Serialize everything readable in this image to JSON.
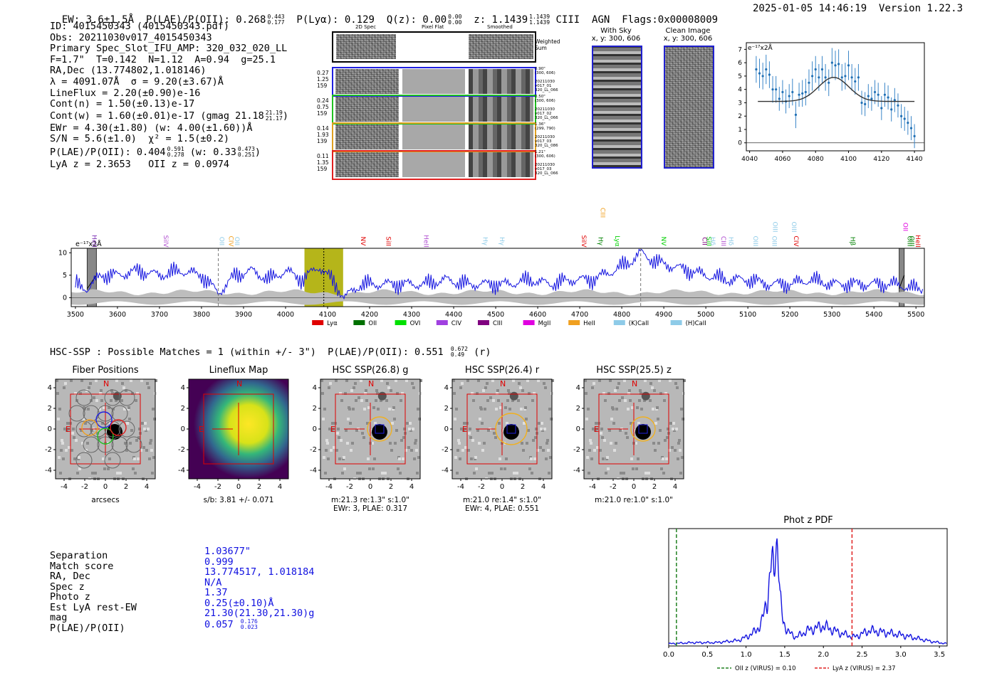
{
  "header": {
    "ew": "EW: 3.6±1.5Å",
    "plae_label": "P(LAE)/P(OII): 0.268",
    "plae_hi": "0.443",
    "plae_lo": "0.177",
    "plya": "P(Lyα): 0.129",
    "qz_label": "Q(z): 0.00",
    "qz_hi": "0.00",
    "qz_lo": "0.00",
    "z_label": "z: 1.1439",
    "z_hi": "1.1439",
    "z_lo": "1.1439",
    "line": "CIII",
    "agn": "AGN",
    "flags": "Flags:0x00008009",
    "datetime": "2025-01-05 14:46:19",
    "version": "Version 1.22.3"
  },
  "info": {
    "id": "ID: 4015450343 (4015450343.pdf)",
    "obs": "Obs: 20211030v017_4015450343",
    "primary": "Primary Spec_Slot_IFU_AMP: 320_032_020_LL",
    "params": "F=1.7\"  T=0.142  N=1.12  A=0.94  g=25.1",
    "radec": "RA,Dec (13.774802,1.018146)",
    "lambda": "λ = 4091.07Å  σ = 9.20(±3.67)Å",
    "lineflux": "LineFlux = 2.20(±0.90)e-16",
    "contn": "Cont(n) = 1.50(±0.13)e-17",
    "contw": "Cont(w) = 1.60(±0.01)e-17 (gmag 21.18",
    "contw_hi": "21.19",
    "contw_lo": "21.17",
    "ewr": "EWr = 4.30(±1.80) (w: 4.00(±1.60))Å",
    "sn": "S/N = 5.6(±1.0)  χ² = 1.5(±0.2)",
    "plae": "P(LAE)/P(OII): 0.404",
    "plae_hi": "0.591",
    "plae_lo": "0.278",
    "plae_w": "(w: 0.33",
    "plae_w_hi": "0.473",
    "plae_w_lo": "0.251",
    "lya_z": "LyA z = 2.3653   OII z = 0.0974"
  },
  "cutouts": {
    "col_headers": [
      "2D Spec",
      "Pixel Flat",
      "Smoothed"
    ],
    "weighted": "Weighted\nSum",
    "rows": [
      {
        "left": "0.27\n1.25\n159",
        "right": "0.90\"\n(300, 606)\n\n20211030\nv017_01\n320_LL_066",
        "color": "#2020e0"
      },
      {
        "left": "0.24\n0.75\n159",
        "right": "0.50\"\n(300, 606)\n\n20211030\nv017_02\n320_LL_066",
        "color": "#20c020"
      },
      {
        "left": "0.14\n1.93\n139",
        "right": "1.36\"\n(299, 790)\n\n20211030\nv017_03\n320_LL_086",
        "color": "#e0a020"
      },
      {
        "left": "0.11\n1.35\n159",
        "right": "1.21\"\n(300, 606)\n\n20211030\nv017_03\n320_LL_066",
        "color": "#e02020"
      }
    ],
    "with_sky": "With Sky",
    "with_sky_xy": "x, y: 300, 606",
    "clean": "Clean Image",
    "clean_xy": "x, y: 300, 606"
  },
  "zoom_chart": {
    "type": "scatter",
    "ylabel": "e⁻¹⁷x2Å",
    "xlim": [
      4038,
      4146
    ],
    "ylim": [
      -0.6,
      7.5
    ],
    "xticks": [
      4040,
      4060,
      4080,
      4100,
      4120,
      4140
    ],
    "yticks": [
      0,
      1,
      2,
      3,
      4,
      5,
      6,
      7
    ],
    "x": [
      4044,
      4046,
      4048,
      4050,
      4052,
      4054,
      4056,
      4058,
      4060,
      4062,
      4064,
      4066,
      4068,
      4070,
      4072,
      4074,
      4076,
      4078,
      4080,
      4082,
      4084,
      4086,
      4088,
      4090,
      4092,
      4094,
      4096,
      4098,
      4100,
      4102,
      4104,
      4106,
      4108,
      4110,
      4112,
      4114,
      4116,
      4118,
      4120,
      4122,
      4124,
      4126,
      4128,
      4130,
      4132,
      4134,
      4136,
      4138,
      4140
    ],
    "y": [
      5.5,
      5.2,
      5.0,
      5.5,
      5.1,
      4.0,
      4.0,
      3.3,
      3.8,
      3.1,
      3.5,
      3.8,
      2.1,
      3.6,
      3.7,
      3.8,
      4.5,
      5.0,
      5.5,
      4.9,
      5.5,
      4.9,
      4.5,
      6.0,
      5.8,
      5.9,
      4.9,
      5.0,
      5.8,
      4.9,
      4.6,
      4.9,
      3.0,
      2.9,
      3.5,
      3.3,
      3.8,
      3.6,
      2.6,
      3.6,
      3.4,
      2.5,
      3.2,
      2.8,
      2.0,
      1.8,
      1.5,
      1.1,
      0.5
    ],
    "err": [
      1.0,
      1.1,
      1.0,
      1.1,
      1.0,
      1.0,
      1.0,
      0.9,
      0.9,
      0.9,
      0.9,
      1.0,
      1.0,
      0.9,
      1.0,
      1.0,
      1.0,
      1.1,
      1.0,
      1.0,
      1.0,
      1.0,
      1.0,
      1.1,
      1.1,
      1.1,
      1.0,
      1.0,
      1.1,
      1.0,
      1.0,
      1.0,
      0.9,
      0.9,
      0.9,
      0.9,
      0.9,
      0.9,
      0.9,
      0.9,
      0.9,
      0.9,
      0.9,
      0.9,
      0.9,
      0.9,
      0.9,
      0.9,
      0.9
    ],
    "fit_continuum": 3.1,
    "fit_peak": 4.9,
    "fit_center": 4091,
    "fit_sigma": 9.2
  },
  "spectrum": {
    "type": "line",
    "ylabel": "e⁻¹⁷x2Å",
    "xlim": [
      3490,
      5520
    ],
    "ylim": [
      -2,
      11
    ],
    "xticks": [
      3500,
      3600,
      3700,
      3800,
      3900,
      4000,
      4100,
      4200,
      4300,
      4400,
      4500,
      4600,
      4700,
      4800,
      4900,
      5000,
      5100,
      5200,
      5300,
      5400,
      5500
    ],
    "yticks": [
      0,
      5,
      10
    ],
    "line_wavelength": 4091,
    "highlight": [
      4045,
      4137
    ],
    "masked": [
      [
        3528,
        3550
      ],
      [
        5460,
        5472
      ]
    ],
    "dashed_lines": [
      3840,
      4845
    ],
    "series_profile": [
      [
        3500,
        3
      ],
      [
        3530,
        2
      ],
      [
        3560,
        5
      ],
      [
        3600,
        5
      ],
      [
        3650,
        6
      ],
      [
        3700,
        5
      ],
      [
        3750,
        6
      ],
      [
        3800,
        5
      ],
      [
        3840,
        1
      ],
      [
        3880,
        5
      ],
      [
        3920,
        6
      ],
      [
        3960,
        4
      ],
      [
        4000,
        6
      ],
      [
        4040,
        4
      ],
      [
        4080,
        7
      ],
      [
        4110,
        4
      ],
      [
        4140,
        0
      ],
      [
        4180,
        3
      ],
      [
        4230,
        3
      ],
      [
        4280,
        3
      ],
      [
        4330,
        3
      ],
      [
        4380,
        4
      ],
      [
        4430,
        3
      ],
      [
        4480,
        3
      ],
      [
        4530,
        3
      ],
      [
        4580,
        4
      ],
      [
        4630,
        3
      ],
      [
        4680,
        4
      ],
      [
        4730,
        4
      ],
      [
        4780,
        6
      ],
      [
        4820,
        8
      ],
      [
        4845,
        10
      ],
      [
        4880,
        8
      ],
      [
        4920,
        7
      ],
      [
        4960,
        6
      ],
      [
        5000,
        5
      ],
      [
        5050,
        4
      ],
      [
        5100,
        4
      ],
      [
        5150,
        3
      ],
      [
        5200,
        3
      ],
      [
        5250,
        4
      ],
      [
        5300,
        3
      ],
      [
        5350,
        3
      ],
      [
        5400,
        3
      ],
      [
        5450,
        3
      ],
      [
        5500,
        2
      ],
      [
        5520,
        2
      ]
    ],
    "lines": [
      {
        "name": "HeII",
        "w": 3540,
        "color": "#7b2fb3",
        "row": 2
      },
      {
        "name": "SiIV",
        "w": 3710,
        "color": "#b04fd0",
        "row": 2
      },
      {
        "name": "OII",
        "w": 3843,
        "color": "#8ecbe8",
        "row": 2
      },
      {
        "name": "CIV",
        "w": 3865,
        "color": "#f0a020",
        "row": 2
      },
      {
        "name": "OII",
        "w": 3880,
        "color": "#8ecbe8",
        "row": 2
      },
      {
        "name": "NV",
        "w": 4180,
        "color": "#e00000",
        "row": 2
      },
      {
        "name": "SiII",
        "w": 4240,
        "color": "#e00000",
        "row": 2
      },
      {
        "name": "HeII",
        "w": 4330,
        "color": "#b04fd0",
        "row": 2
      },
      {
        "name": "Hγ",
        "w": 4470,
        "color": "#8ecbe8",
        "row": 2
      },
      {
        "name": "Hγ",
        "w": 4510,
        "color": "#8ecbe8",
        "row": 2
      },
      {
        "name": "SiIV",
        "w": 4705,
        "color": "#e00000",
        "row": 2
      },
      {
        "name": "Hγ",
        "w": 4745,
        "color": "#008000",
        "row": 2
      },
      {
        "name": "CIII",
        "w": 4750,
        "color": "#f0a020",
        "row": 0
      },
      {
        "name": "Lyα",
        "w": 4785,
        "color": "#00d000",
        "row": 2
      },
      {
        "name": "NV",
        "w": 4895,
        "color": "#00d000",
        "row": 2
      },
      {
        "name": "CII",
        "w": 4992,
        "color": "#800080",
        "row": 2
      },
      {
        "name": "SiII",
        "w": 5002,
        "color": "#00d000",
        "row": 2
      },
      {
        "name": "Hδ",
        "w": 5012,
        "color": "#8ecbe8",
        "row": 2
      },
      {
        "name": "CIII",
        "w": 5037,
        "color": "#b04fd0",
        "row": 2
      },
      {
        "name": "Hδ",
        "w": 5055,
        "color": "#8ecbe8",
        "row": 2
      },
      {
        "name": "OIII",
        "w": 5113,
        "color": "#8ecbe8",
        "row": 2
      },
      {
        "name": "OIII",
        "w": 5158,
        "color": "#8ecbe8",
        "row": 2
      },
      {
        "name": "OIII",
        "w": 5160,
        "color": "#8ecbe8",
        "row": 1
      },
      {
        "name": "OIII",
        "w": 5205,
        "color": "#8ecbe8",
        "row": 1
      },
      {
        "name": "CIV",
        "w": 5210,
        "color": "#e00000",
        "row": 2
      },
      {
        "name": "Hβ",
        "w": 5345,
        "color": "#008000",
        "row": 2
      },
      {
        "name": "OII",
        "w": 5470,
        "color": "#e000e0",
        "row": 1
      },
      {
        "name": "OIII",
        "w": 5480,
        "color": "#008000",
        "row": 2
      },
      {
        "name": "OIII",
        "w": 5485,
        "color": "#008000",
        "row": 2
      },
      {
        "name": "HeII",
        "w": 5500,
        "color": "#e00000",
        "row": 2
      }
    ],
    "legend": [
      {
        "name": "Lyα",
        "color": "#e00000"
      },
      {
        "name": "OII",
        "color": "#007000"
      },
      {
        "name": "OVI",
        "color": "#00e000"
      },
      {
        "name": "CIV",
        "color": "#a040e0"
      },
      {
        "name": "CIII",
        "color": "#800080"
      },
      {
        "name": "MgII",
        "color": "#e000e0"
      },
      {
        "name": "HeII",
        "color": "#f0a020"
      },
      {
        "name": "(K)CaII",
        "color": "#8ecbe8"
      },
      {
        "name": "(H)CaII",
        "color": "#8ecbe8"
      }
    ]
  },
  "hsc": {
    "header": "HSC-SSP : Possible Matches = 1 (within +/- 3\")  P(LAE)/P(OII): 0.551",
    "hdr_hi": "0.672",
    "hdr_lo": "0.49",
    "hdr_suffix": "(r)",
    "panels": [
      {
        "title": "Fiber Positions",
        "caption1": "arcsecs",
        "caption2": ""
      },
      {
        "title": "Lineflux Map",
        "caption1": "s/b: 3.81 +/- 0.071",
        "caption2": ""
      },
      {
        "title": "HSC SSP(26.8) g",
        "caption1": "m:21.3  re:1.3\"  s:1.0\"",
        "caption2": "EWr: 3, PLAE: 0.317"
      },
      {
        "title": "HSC SSP(26.4) r",
        "caption1": "m:21.0  re:1.4\"  s:1.0\"",
        "caption2": "EWr: 4, PLAE: 0.551"
      },
      {
        "title": "HSC SSP(25.5) z",
        "caption1": "m:21.0  re:1.0\"  s:1.0\"",
        "caption2": ""
      }
    ],
    "ticks": [
      "-4",
      "-2",
      "0",
      "2",
      "4"
    ],
    "n_label": "N",
    "e_label": "E"
  },
  "match": {
    "labels": [
      "Separation",
      "Match score",
      "RA, Dec",
      "Spec z",
      "Photo z",
      "Est LyA rest-EW",
      "mag",
      "P(LAE)/P(OII)"
    ],
    "values": [
      "1.03677\"",
      "0.999",
      "13.774517, 1.018184",
      "N/A",
      "1.37",
      "0.25(±0.10)Å",
      "21.30(21.30,21.30)g",
      "0.057"
    ],
    "plae_hi": "0.176",
    "plae_lo": "0.023"
  },
  "photz": {
    "type": "line",
    "title": "Phot z PDF",
    "xlim": [
      0.0,
      3.6
    ],
    "xticks": [
      "0.0",
      "0.5",
      "1.0",
      "1.5",
      "2.0",
      "2.5",
      "3.0",
      "3.5"
    ],
    "oii_z": 0.1,
    "lya_z": 2.37,
    "legend_oii": "OII z (VIRUS) = 0.10",
    "legend_lya": "LyA z (VIRUS) = 2.37",
    "profile": [
      [
        0.0,
        0.02
      ],
      [
        0.3,
        0.03
      ],
      [
        0.6,
        0.03
      ],
      [
        0.9,
        0.05
      ],
      [
        1.0,
        0.08
      ],
      [
        1.1,
        0.12
      ],
      [
        1.2,
        0.2
      ],
      [
        1.25,
        0.35
      ],
      [
        1.3,
        0.55
      ],
      [
        1.33,
        0.75
      ],
      [
        1.36,
        0.62
      ],
      [
        1.38,
        0.98
      ],
      [
        1.41,
        0.95
      ],
      [
        1.44,
        0.4
      ],
      [
        1.48,
        0.22
      ],
      [
        1.55,
        0.12
      ],
      [
        1.65,
        0.08
      ],
      [
        1.8,
        0.14
      ],
      [
        2.0,
        0.18
      ],
      [
        2.2,
        0.12
      ],
      [
        2.4,
        0.08
      ],
      [
        2.6,
        0.14
      ],
      [
        2.8,
        0.12
      ],
      [
        3.0,
        0.1
      ],
      [
        3.2,
        0.07
      ],
      [
        3.4,
        0.04
      ],
      [
        3.6,
        0.02
      ]
    ]
  }
}
